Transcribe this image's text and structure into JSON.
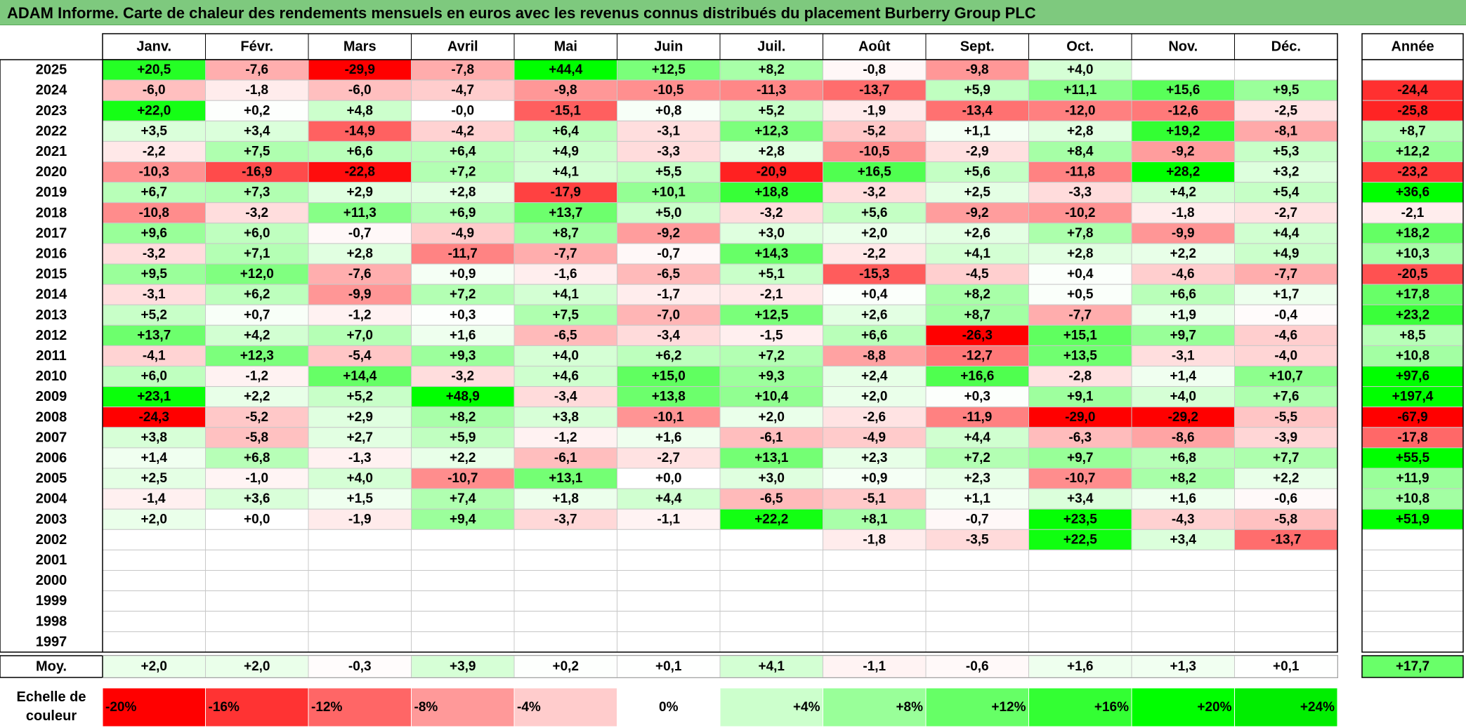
{
  "title": "ADAM Informe. Carte de chaleur des rendements mensuels en euros avec les revenus connus distribués du placement Burberry Group PLC",
  "chart_data": {
    "type": "heatmap",
    "title": "ADAM Informe. Carte de chaleur des rendements mensuels en euros avec les revenus connus distribués du placement Burberry Group PLC",
    "columns": [
      "Janv.",
      "Févr.",
      "Mars",
      "Avril",
      "Mai",
      "Juin",
      "Juil.",
      "Août",
      "Sept.",
      "Oct.",
      "Nov.",
      "Déc."
    ],
    "annual_header": "Année",
    "average_label": "Moy.",
    "rows": [
      {
        "year": "2025",
        "values": [
          "+20,5",
          "-7,6",
          "-29,9",
          "-7,8",
          "+44,4",
          "+12,5",
          "+8,2",
          "-0,8",
          "-9,8",
          "+4,0",
          "",
          ""
        ],
        "annual": ""
      },
      {
        "year": "2024",
        "values": [
          "-6,0",
          "-1,8",
          "-6,0",
          "-4,7",
          "-9,8",
          "-10,5",
          "-11,3",
          "-13,7",
          "+5,9",
          "+11,1",
          "+15,6",
          "+9,5"
        ],
        "annual": "-24,4"
      },
      {
        "year": "2023",
        "values": [
          "+22,0",
          "+0,2",
          "+4,8",
          "-0,0",
          "-15,1",
          "+0,8",
          "+5,2",
          "-1,9",
          "-13,4",
          "-12,0",
          "-12,6",
          "-2,5"
        ],
        "annual": "-25,8"
      },
      {
        "year": "2022",
        "values": [
          "+3,5",
          "+3,4",
          "-14,9",
          "-4,2",
          "+6,4",
          "-3,1",
          "+12,3",
          "-5,2",
          "+1,1",
          "+2,8",
          "+19,2",
          "-8,1"
        ],
        "annual": "+8,7"
      },
      {
        "year": "2021",
        "values": [
          "-2,2",
          "+7,5",
          "+6,6",
          "+6,4",
          "+4,9",
          "-3,3",
          "+2,8",
          "-10,5",
          "-2,9",
          "+8,4",
          "-9,2",
          "+5,3"
        ],
        "annual": "+12,2"
      },
      {
        "year": "2020",
        "values": [
          "-10,3",
          "-16,9",
          "-22,8",
          "+7,2",
          "+4,1",
          "+5,5",
          "-20,9",
          "+16,5",
          "+5,6",
          "-11,8",
          "+28,2",
          "+3,2"
        ],
        "annual": "-23,2"
      },
      {
        "year": "2019",
        "values": [
          "+6,7",
          "+7,3",
          "+2,9",
          "+2,8",
          "-17,9",
          "+10,1",
          "+18,8",
          "-3,2",
          "+2,5",
          "-3,3",
          "+4,2",
          "+5,4"
        ],
        "annual": "+36,6"
      },
      {
        "year": "2018",
        "values": [
          "-10,8",
          "-3,2",
          "+11,3",
          "+6,9",
          "+13,7",
          "+5,0",
          "-3,2",
          "+5,6",
          "-9,2",
          "-10,2",
          "-1,8",
          "-2,7"
        ],
        "annual": "-2,1"
      },
      {
        "year": "2017",
        "values": [
          "+9,6",
          "+6,0",
          "-0,7",
          "-4,9",
          "+8,7",
          "-9,2",
          "+3,0",
          "+2,0",
          "+2,6",
          "+7,8",
          "-9,9",
          "+4,4"
        ],
        "annual": "+18,2"
      },
      {
        "year": "2016",
        "values": [
          "-3,2",
          "+7,1",
          "+2,8",
          "-11,7",
          "-7,7",
          "-0,7",
          "+14,3",
          "-2,2",
          "+4,1",
          "+2,8",
          "+2,2",
          "+4,9"
        ],
        "annual": "+10,3"
      },
      {
        "year": "2015",
        "values": [
          "+9,5",
          "+12,0",
          "-7,6",
          "+0,9",
          "-1,6",
          "-6,5",
          "+5,1",
          "-15,3",
          "-4,5",
          "+0,4",
          "-4,6",
          "-7,7"
        ],
        "annual": "-20,5"
      },
      {
        "year": "2014",
        "values": [
          "-3,1",
          "+6,2",
          "-9,9",
          "+7,2",
          "+4,1",
          "-1,7",
          "-2,1",
          "+0,4",
          "+8,2",
          "+0,5",
          "+6,6",
          "+1,7"
        ],
        "annual": "+17,8"
      },
      {
        "year": "2013",
        "values": [
          "+5,2",
          "+0,7",
          "-1,2",
          "+0,3",
          "+7,5",
          "-7,0",
          "+12,5",
          "+2,6",
          "+8,7",
          "-7,7",
          "+1,9",
          "-0,4"
        ],
        "annual": "+23,2"
      },
      {
        "year": "2012",
        "values": [
          "+13,7",
          "+4,2",
          "+7,0",
          "+1,6",
          "-6,5",
          "-3,4",
          "-1,5",
          "+6,6",
          "-26,3",
          "+15,1",
          "+9,7",
          "-4,6"
        ],
        "annual": "+8,5"
      },
      {
        "year": "2011",
        "values": [
          "-4,1",
          "+12,3",
          "-5,4",
          "+9,3",
          "+4,0",
          "+6,2",
          "+7,2",
          "-8,8",
          "-12,7",
          "+13,5",
          "-3,1",
          "-4,0"
        ],
        "annual": "+10,8"
      },
      {
        "year": "2010",
        "values": [
          "+6,0",
          "-1,2",
          "+14,4",
          "-3,2",
          "+4,6",
          "+15,0",
          "+9,3",
          "+2,4",
          "+16,6",
          "-2,8",
          "+1,4",
          "+10,7"
        ],
        "annual": "+97,6"
      },
      {
        "year": "2009",
        "values": [
          "+23,1",
          "+2,2",
          "+5,2",
          "+48,9",
          "-3,4",
          "+13,8",
          "+10,4",
          "+2,0",
          "+0,3",
          "+9,1",
          "+4,0",
          "+7,6"
        ],
        "annual": "+197,4"
      },
      {
        "year": "2008",
        "values": [
          "-24,3",
          "-5,2",
          "+2,9",
          "+8,2",
          "+3,8",
          "-10,1",
          "+2,0",
          "-2,6",
          "-11,9",
          "-29,0",
          "-29,2",
          "-5,5"
        ],
        "annual": "-67,9"
      },
      {
        "year": "2007",
        "values": [
          "+3,8",
          "-5,8",
          "+2,7",
          "+5,9",
          "-1,2",
          "+1,6",
          "-6,1",
          "-4,9",
          "+4,4",
          "-6,3",
          "-8,6",
          "-3,9"
        ],
        "annual": "-17,8"
      },
      {
        "year": "2006",
        "values": [
          "+1,4",
          "+6,8",
          "-1,3",
          "+2,2",
          "-6,1",
          "-2,7",
          "+13,1",
          "+2,3",
          "+7,2",
          "+9,7",
          "+6,8",
          "+7,7"
        ],
        "annual": "+55,5"
      },
      {
        "year": "2005",
        "values": [
          "+2,5",
          "-1,0",
          "+4,0",
          "-10,7",
          "+13,1",
          "+0,0",
          "+3,0",
          "+0,9",
          "+2,3",
          "-10,7",
          "+8,2",
          "+2,2"
        ],
        "annual": "+11,9"
      },
      {
        "year": "2004",
        "values": [
          "-1,4",
          "+3,6",
          "+1,5",
          "+7,4",
          "+1,8",
          "+4,4",
          "-6,5",
          "-5,1",
          "+1,1",
          "+3,4",
          "+1,6",
          "-0,6"
        ],
        "annual": "+10,8"
      },
      {
        "year": "2003",
        "values": [
          "+2,0",
          "+0,0",
          "-1,9",
          "+9,4",
          "-3,7",
          "-1,1",
          "+22,2",
          "+8,1",
          "-0,7",
          "+23,5",
          "-4,3",
          "-5,8"
        ],
        "annual": "+51,9"
      },
      {
        "year": "2002",
        "values": [
          "",
          "",
          "",
          "",
          "",
          "",
          "",
          "-1,8",
          "-3,5",
          "+22,5",
          "+3,4",
          "-13,7"
        ],
        "annual": ""
      },
      {
        "year": "2001",
        "values": [
          "",
          "",
          "",
          "",
          "",
          "",
          "",
          "",
          "",
          "",
          "",
          ""
        ],
        "annual": ""
      },
      {
        "year": "2000",
        "values": [
          "",
          "",
          "",
          "",
          "",
          "",
          "",
          "",
          "",
          "",
          "",
          ""
        ],
        "annual": ""
      },
      {
        "year": "1999",
        "values": [
          "",
          "",
          "",
          "",
          "",
          "",
          "",
          "",
          "",
          "",
          "",
          ""
        ],
        "annual": ""
      },
      {
        "year": "1998",
        "values": [
          "",
          "",
          "",
          "",
          "",
          "",
          "",
          "",
          "",
          "",
          "",
          ""
        ],
        "annual": ""
      },
      {
        "year": "1997",
        "values": [
          "",
          "",
          "",
          "",
          "",
          "",
          "",
          "",
          "",
          "",
          "",
          ""
        ],
        "annual": ""
      }
    ],
    "average": {
      "values": [
        "+2,0",
        "+2,0",
        "-0,3",
        "+3,9",
        "+0,2",
        "+0,1",
        "+4,1",
        "-1,1",
        "-0,6",
        "+1,6",
        "+1,3",
        "+0,1"
      ],
      "annual": "+17,7"
    },
    "color_scale": {
      "label_line1": "Echelle de",
      "label_line2": "couleur",
      "stops": [
        {
          "label": "-20%",
          "value": -20,
          "color": "#ff0000"
        },
        {
          "label": "-16%",
          "value": -16,
          "color": "#ff3333"
        },
        {
          "label": "-12%",
          "value": -12,
          "color": "#ff6666"
        },
        {
          "label": "-8%",
          "value": -8,
          "color": "#ff9999"
        },
        {
          "label": "-4%",
          "value": -4,
          "color": "#ffcccc"
        },
        {
          "label": "0%",
          "value": 0,
          "color": "#ffffff"
        },
        {
          "label": "+4%",
          "value": 4,
          "color": "#ccffcc"
        },
        {
          "label": "+8%",
          "value": 8,
          "color": "#99ff99"
        },
        {
          "label": "+12%",
          "value": 12,
          "color": "#66ff66"
        },
        {
          "label": "+16%",
          "value": 16,
          "color": "#33ff33"
        },
        {
          "label": "+20%",
          "value": 20,
          "color": "#00ff00"
        },
        {
          "label": "+24%",
          "value": 24,
          "color": "#00ee00"
        }
      ]
    }
  }
}
